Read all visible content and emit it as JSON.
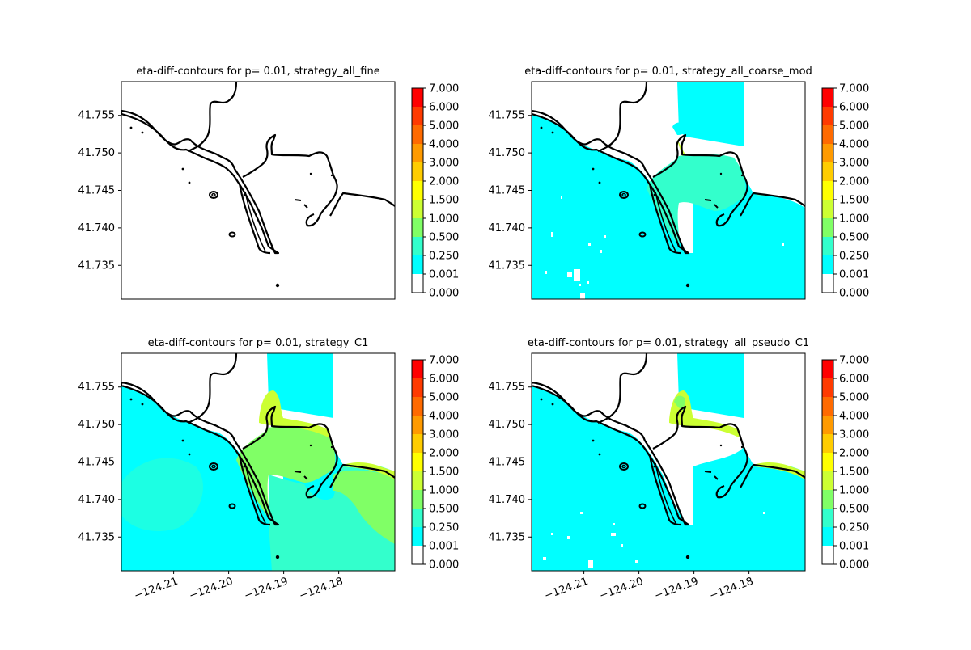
{
  "figure": {
    "background": "#ffffff"
  },
  "colorbar": {
    "levels": [
      "7.000",
      "6.000",
      "5.000",
      "4.000",
      "3.000",
      "2.000",
      "1.500",
      "1.000",
      "0.500",
      "0.250",
      "0.001",
      "0.000"
    ],
    "colors_top_to_bottom": [
      "#ff0000",
      "#ff3a00",
      "#ff6a00",
      "#ff9a00",
      "#ffcc00",
      "#ffff00",
      "#ccff33",
      "#80ff66",
      "#33ffcc",
      "#00ffff",
      "#ffffff"
    ]
  },
  "xaxis": {
    "tick_labels": [
      "−124.21",
      "−124.20",
      "−124.19",
      "−124.18"
    ],
    "xlim": [
      -124.2195,
      -124.1698
    ]
  },
  "yaxis": {
    "tick_labels": [
      "41.755",
      "41.750",
      "41.745",
      "41.740",
      "41.735"
    ],
    "ylim": [
      41.7305,
      41.7595
    ]
  },
  "chart_data": [
    {
      "type": "heatmap",
      "title": "eta-diff-contours for p= 0.01, strategy_all_fine",
      "fill": "none",
      "color_levels": [
        0,
        0.001,
        0.25,
        0.5,
        1.0,
        1.5,
        2.0,
        3.0,
        4.0,
        5.0,
        6.0,
        7.0
      ],
      "xlim": [
        -124.2195,
        -124.1698
      ],
      "ylim": [
        41.7305,
        41.7595
      ],
      "show_x_ticks": false
    },
    {
      "type": "heatmap",
      "title": "eta-diff-contours for p= 0.01, strategy_all_coarse_mod",
      "fill": "mostly 0.001-0.25 in water, 0.25-0.5 inside bay",
      "color_levels": [
        0,
        0.001,
        0.25,
        0.5,
        1.0,
        1.5,
        2.0,
        3.0,
        4.0,
        5.0,
        6.0,
        7.0
      ],
      "xlim": [
        -124.2195,
        -124.1698
      ],
      "ylim": [
        41.7305,
        41.7595
      ],
      "show_x_ticks": false
    },
    {
      "type": "heatmap",
      "title": "eta-diff-contours for p= 0.01, strategy_C1",
      "fill": "0.001-0.25 offshore, 0.25-1.0 bay and south, 1.0-1.5 near north shore",
      "color_levels": [
        0,
        0.001,
        0.25,
        0.5,
        1.0,
        1.5,
        2.0,
        3.0,
        4.0,
        5.0,
        6.0,
        7.0
      ],
      "xlim": [
        -124.2195,
        -124.1698
      ],
      "ylim": [
        41.7305,
        41.7595
      ],
      "show_x_ticks": true
    },
    {
      "type": "heatmap",
      "title": "eta-diff-contours for p= 0.01, strategy_all_pseudo_C1",
      "fill": "mostly 0.001-0.25, 1.0-1.5 near north shore",
      "color_levels": [
        0,
        0.001,
        0.25,
        0.5,
        1.0,
        1.5,
        2.0,
        3.0,
        4.0,
        5.0,
        6.0,
        7.0
      ],
      "xlim": [
        -124.2195,
        -124.1698
      ],
      "ylim": [
        41.7305,
        41.7595
      ],
      "show_x_ticks": true
    }
  ]
}
